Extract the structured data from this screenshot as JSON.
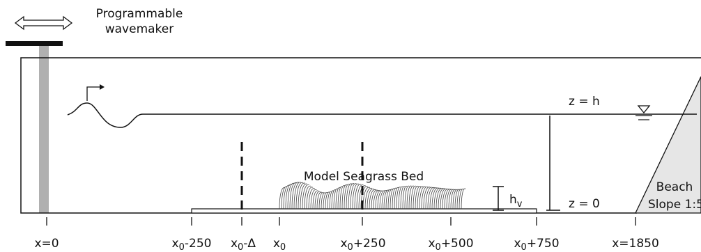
{
  "wavemaker": {
    "title_line1": "Programmable",
    "title_line2": "wavemaker"
  },
  "bed_label": "Model Seagrass Bed",
  "height_label": {
    "main": "h",
    "sub": "v"
  },
  "water_levels": {
    "top": "z = h",
    "bottom": "z = 0"
  },
  "beach": {
    "line1": "Beach",
    "line2": "Slope 1:5"
  },
  "x_ticks": [
    {
      "main": "x=0",
      "sub": "",
      "rest": ""
    },
    {
      "main": "x",
      "sub": "0",
      "rest": "-250"
    },
    {
      "main": "x",
      "sub": "0",
      "rest": "-Δ"
    },
    {
      "main": "x",
      "sub": "0",
      "rest": ""
    },
    {
      "main": "x",
      "sub": "0",
      "rest": "+250"
    },
    {
      "main": "x",
      "sub": "0",
      "rest": "+500"
    },
    {
      "main": "x",
      "sub": "0",
      "rest": "+750"
    },
    {
      "main": "x=1850",
      "sub": "",
      "rest": ""
    }
  ],
  "colors": {
    "line": "#111111",
    "paddle": "#b0b0b0",
    "beach_fill": "#e6e6e6",
    "bed": "#444444"
  }
}
